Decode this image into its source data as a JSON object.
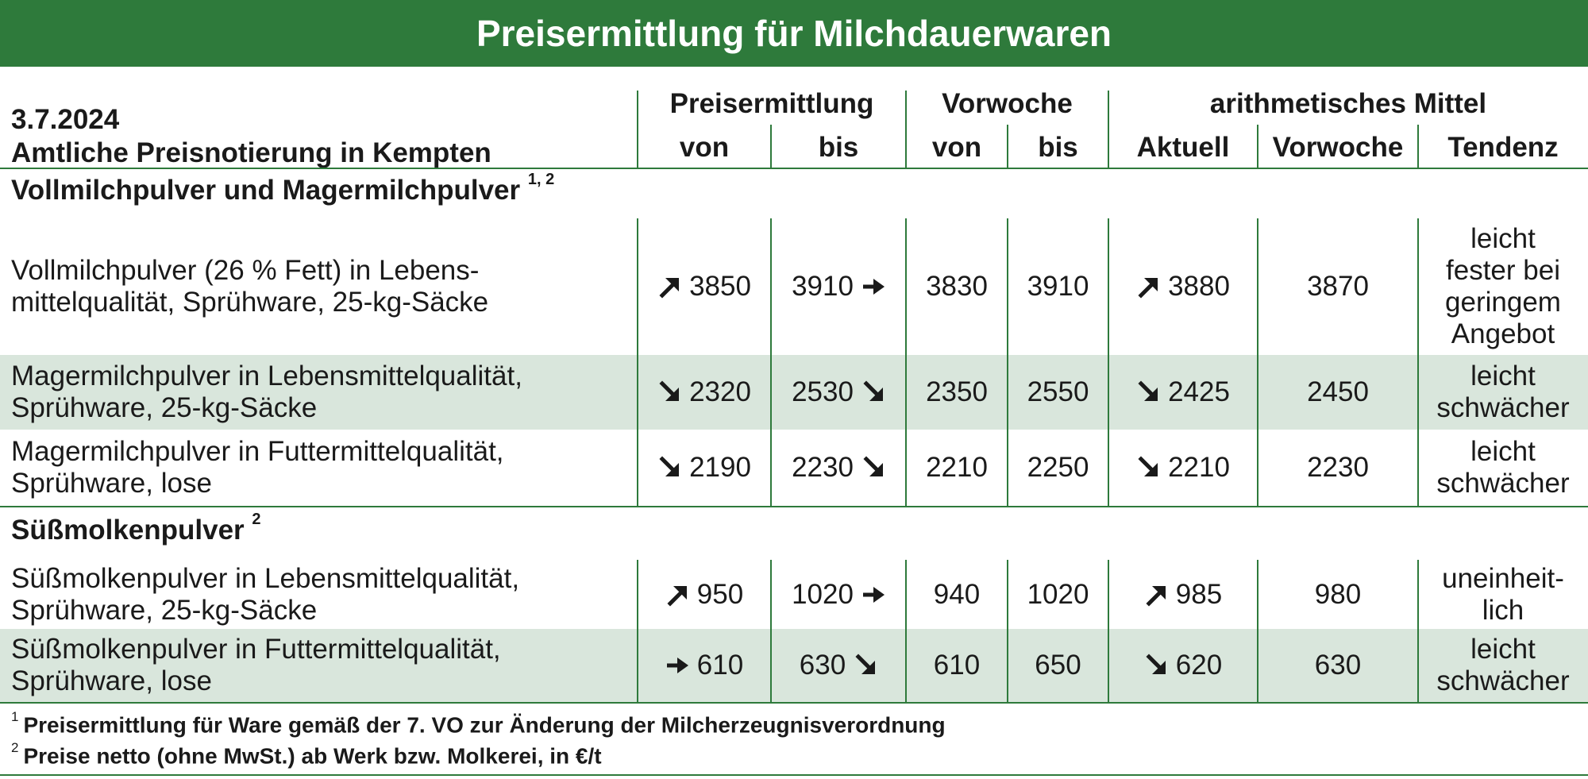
{
  "title": "Preisermittlung für Milchdauerwaren",
  "header": {
    "date": "3.7.2024",
    "subtitle": "Amtliche Preisnotierung in Kempten",
    "group_preis": "Preisermittlung",
    "group_vorwoche": "Vorwoche",
    "group_mittel": "arithmetisches Mittel",
    "col_von": "von",
    "col_bis": "bis",
    "col_von2": "von",
    "col_bis2": "bis",
    "col_aktuell": "Aktuell",
    "col_vorwoche": "Vorwoche",
    "col_tendenz": "Tendenz"
  },
  "sections": [
    {
      "title": "Vollmilchpulver und Magermilchpulver",
      "sup": "1, 2",
      "rows": [
        {
          "label_l1": "Vollmilchpulver (26 % Fett) in Lebens-",
          "label_l2": "mittelqualität, Sprühware, 25-kg-Säcke",
          "von": "3850",
          "von_arrow": "up-right-arrow",
          "bis": "3910",
          "bis_arrow": "right-arrow",
          "vw_von": "3830",
          "vw_bis": "3910",
          "aktuell": "3880",
          "aktuell_arrow": "up-right-arrow",
          "vorwoche": "3870",
          "tendenz": [
            "leicht",
            "fester bei",
            "geringem",
            "Angebot"
          ],
          "shaded": false
        },
        {
          "label_l1": "Magermilchpulver in Lebensmittelqualität,",
          "label_l2": "Sprühware, 25-kg-Säcke",
          "von": "2320",
          "von_arrow": "down-right-arrow",
          "bis": "2530",
          "bis_arrow": "down-right-arrow",
          "vw_von": "2350",
          "vw_bis": "2550",
          "aktuell": "2425",
          "aktuell_arrow": "down-right-arrow",
          "vorwoche": "2450",
          "tendenz": [
            "leicht",
            "schwächer"
          ],
          "shaded": true
        },
        {
          "label_l1": "Magermilchpulver in Futtermittelqualität,",
          "label_l2": "Sprühware, lose",
          "von": "2190",
          "von_arrow": "down-right-arrow",
          "bis": "2230",
          "bis_arrow": "down-right-arrow",
          "vw_von": "2210",
          "vw_bis": "2250",
          "aktuell": "2210",
          "aktuell_arrow": "down-right-arrow",
          "vorwoche": "2230",
          "tendenz": [
            "leicht",
            "schwächer"
          ],
          "shaded": false
        }
      ]
    },
    {
      "title": "Süßmolkenpulver",
      "sup": "2",
      "rows": [
        {
          "label_l1": "Süßmolkenpulver in Lebensmittelqualität,",
          "label_l2": "Sprühware, 25-kg-Säcke",
          "von": "950",
          "von_arrow": "up-right-arrow",
          "bis": "1020",
          "bis_arrow": "right-arrow",
          "vw_von": "940",
          "vw_bis": "1020",
          "aktuell": "985",
          "aktuell_arrow": "up-right-arrow",
          "vorwoche": "980",
          "tendenz": [
            "uneinheit-",
            "lich"
          ],
          "shaded": false
        },
        {
          "label_l1": "Süßmolkenpulver in Futtermittelqualität,",
          "label_l2": "Sprühware, lose",
          "von": "610",
          "von_arrow": "right-arrow",
          "bis": "630",
          "bis_arrow": "down-right-arrow",
          "vw_von": "610",
          "vw_bis": "650",
          "aktuell": "620",
          "aktuell_arrow": "down-right-arrow",
          "vorwoche": "630",
          "tendenz": [
            "leicht",
            "schwächer"
          ],
          "shaded": true
        }
      ]
    }
  ],
  "footnotes": [
    {
      "num": "1",
      "text": "Preisermittlung für Ware gemäß der 7. VO zur Änderung der Milcherzeugnisverordnung"
    },
    {
      "num": "2",
      "text": "Preise netto (ohne MwSt.) ab Werk bzw. Molkerei, in €/t"
    }
  ],
  "colors": {
    "accent": "#2e7a3b",
    "row_shade": "#d9e6dc"
  }
}
